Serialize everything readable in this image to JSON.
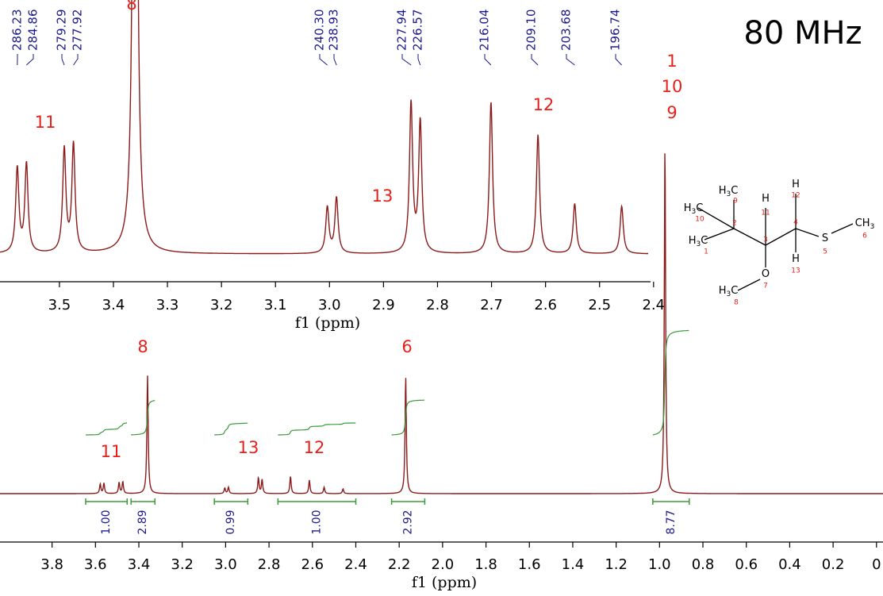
{
  "title": "80 MHz",
  "chart_data": [
    {
      "type": "spectrum",
      "panel": "inset",
      "xlabel": "f1 (ppm)",
      "xlim": [
        3.61,
        2.41
      ],
      "xticks": [
        3.5,
        3.4,
        3.3,
        3.2,
        3.1,
        {
          "value": 3,
          "label": "3.0"
        },
        2.9,
        2.8,
        2.7,
        2.6,
        2.5,
        2.4
      ],
      "color": "#8b1a1a",
      "peaks": {
        "x": [
          3.578,
          3.561,
          3.491,
          3.474,
          3.36,
          3.004,
          2.987,
          2.849,
          2.832,
          2.701,
          2.614,
          2.546,
          2.459
        ],
        "height": [
          107,
          112,
          130,
          136,
          1340,
          58,
          70,
          188,
          165,
          191,
          150,
          63,
          60
        ]
      },
      "peak_labels": [
        "286.23",
        "284.86",
        "279.29",
        "277.92",
        "240.30",
        "238.93",
        "227.94",
        "226.57",
        "216.04",
        "209.10",
        "203.68",
        "196.74"
      ],
      "assignments": [
        "8",
        "11",
        "13",
        "12",
        "1",
        "10",
        "9"
      ]
    },
    {
      "type": "spectrum",
      "panel": "main",
      "xlabel": "f1 (ppm)",
      "xlim": [
        4.04,
        -0.03
      ],
      "xticks": [
        3.8,
        3.6,
        3.4,
        3.2,
        {
          "value": 3,
          "label": "3.0"
        },
        2.8,
        2.6,
        2.4,
        2.2,
        {
          "value": 2,
          "label": "2.0"
        },
        1.8,
        1.6,
        1.4,
        1.2,
        {
          "value": 1,
          "label": "1.0"
        },
        0.8,
        0.6,
        0.4,
        0.2,
        0
      ],
      "color": "#8b1a1a",
      "peaks": {
        "x": [
          3.578,
          3.561,
          3.491,
          3.474,
          3.36,
          3.004,
          2.987,
          2.849,
          2.832,
          2.701,
          2.614,
          2.546,
          2.459,
          2.17,
          0.975
        ],
        "height": [
          12,
          13,
          14,
          15,
          149,
          7,
          8,
          20,
          18,
          22,
          17,
          8,
          6,
          148,
          442
        ]
      },
      "integrals": {
        "ranges": [
          [
            3.645,
            3.454
          ],
          [
            3.436,
            3.326
          ],
          [
            3.052,
            2.898
          ],
          [
            2.759,
            2.4
          ],
          [
            2.235,
            2.082
          ],
          [
            1.031,
            0.863
          ]
        ],
        "values": [
          1,
          2.89,
          0.99,
          1,
          2.92,
          8.77
        ],
        "value_labels": [
          "1.00",
          "2.89",
          "0.99",
          "1.00",
          "2.92",
          "8.77"
        ],
        "color": "#3c9a3c"
      },
      "assignments": [
        "8",
        "11",
        "13",
        "12",
        "6"
      ]
    }
  ],
  "molecule": {
    "atoms": [
      {
        "label": [
          "H",
          "3",
          "C"
        ],
        "number": "9"
      },
      {
        "label": [
          "H",
          "3",
          "C"
        ],
        "number": "10"
      },
      {
        "label": [
          "H",
          "3",
          "C"
        ],
        "number": "1"
      },
      {
        "label": [
          "H"
        ],
        "number": "11"
      },
      {
        "label": [
          "H"
        ],
        "number": "12"
      },
      {
        "label": [
          "S"
        ],
        "number": "5"
      },
      {
        "label": [
          "C",
          "H",
          "3"
        ],
        "number": "6"
      },
      {
        "label": [
          "H"
        ],
        "number": "13"
      },
      {
        "label": [
          "O"
        ],
        "number": "7"
      },
      {
        "label": [
          "H",
          "3",
          "C"
        ],
        "number": "8"
      }
    ],
    "carbons": [
      "2",
      "3",
      "4"
    ]
  }
}
